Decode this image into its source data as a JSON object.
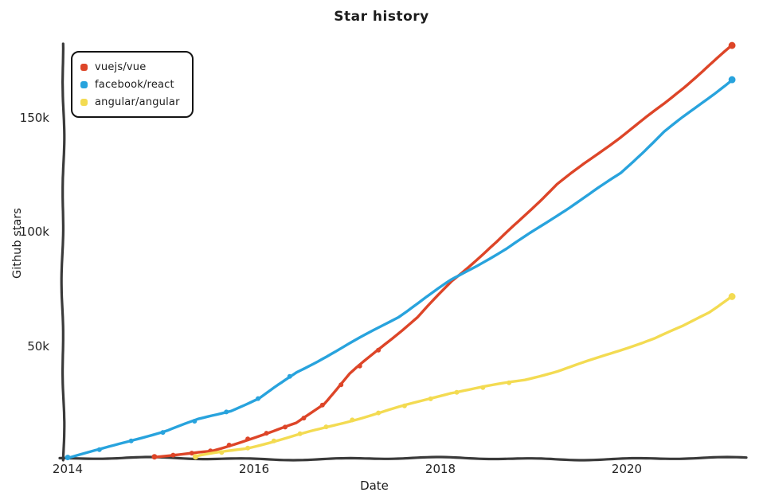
{
  "chart_data": {
    "type": "line",
    "title": "Star history",
    "xlabel": "Date",
    "ylabel": "Github stars",
    "legend_position": "top-left",
    "grid": false,
    "axis_color": "#3a3a3a",
    "text_color": "#1c1c1c",
    "x_range": [
      2014,
      2021.3
    ],
    "y_range": [
      0,
      185000
    ],
    "x_ticks": [
      {
        "label": "2014",
        "value": 2014
      },
      {
        "label": "2016",
        "value": 2016
      },
      {
        "label": "2018",
        "value": 2018
      },
      {
        "label": "2020",
        "value": 2020
      }
    ],
    "y_ticks": [
      {
        "label": "50k",
        "value": 50
      },
      {
        "label": "100k",
        "value": 100
      },
      {
        "label": "150k",
        "value": 150
      }
    ],
    "y_unit": "stars (thousands)",
    "series": [
      {
        "name": "vuejs/vue",
        "color": "#dd4528",
        "points": [
          [
            2014.93,
            0.8
          ],
          [
            2015.25,
            2
          ],
          [
            2015.55,
            3.5
          ],
          [
            2015.92,
            8.5
          ],
          [
            2016.2,
            12
          ],
          [
            2016.45,
            15.5
          ],
          [
            2016.75,
            24
          ],
          [
            2017.03,
            37
          ],
          [
            2017.4,
            50
          ],
          [
            2017.75,
            62
          ],
          [
            2018.11,
            78
          ],
          [
            2018.6,
            95
          ],
          [
            2019.25,
            120
          ],
          [
            2019.93,
            141
          ],
          [
            2020.4,
            156
          ],
          [
            2021.12,
            181
          ]
        ]
      },
      {
        "name": "facebook/react",
        "color": "#28a3dd",
        "points": [
          [
            2014.0,
            0.5
          ],
          [
            2014.35,
            4
          ],
          [
            2014.7,
            8
          ],
          [
            2015.07,
            12
          ],
          [
            2015.4,
            17
          ],
          [
            2015.75,
            21
          ],
          [
            2016.05,
            26.5
          ],
          [
            2016.45,
            38
          ],
          [
            2017.0,
            50
          ],
          [
            2017.55,
            62
          ],
          [
            2018.11,
            78
          ],
          [
            2018.7,
            92
          ],
          [
            2019.25,
            107
          ],
          [
            2019.93,
            125
          ],
          [
            2020.4,
            143
          ],
          [
            2021.12,
            166
          ]
        ]
      },
      {
        "name": "angular/angular",
        "color": "#f3db52",
        "points": [
          [
            2015.37,
            0.8
          ],
          [
            2015.92,
            4.5
          ],
          [
            2016.5,
            11
          ],
          [
            2017.1,
            17.5
          ],
          [
            2017.6,
            23
          ],
          [
            2018.1,
            28.5
          ],
          [
            2018.9,
            34.5
          ],
          [
            2019.25,
            38.5
          ],
          [
            2019.76,
            45.5
          ],
          [
            2020.3,
            53
          ],
          [
            2020.6,
            58
          ],
          [
            2020.88,
            64
          ],
          [
            2021.12,
            71
          ]
        ]
      }
    ]
  }
}
